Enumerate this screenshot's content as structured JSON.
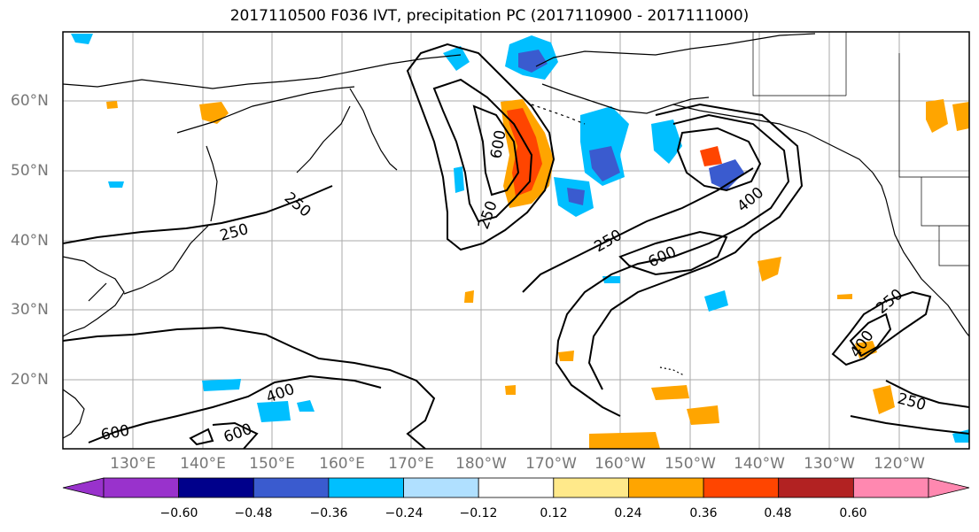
{
  "title": "2017110500 F036 IVT, precipitation PC (2017110900 - 2017111000)",
  "lat_labels": [
    "60°N",
    "50°N",
    "40°N",
    "30°N",
    "20°N"
  ],
  "lon_labels": [
    "130°E",
    "140°E",
    "150°E",
    "160°E",
    "170°E",
    "180°W",
    "170°W",
    "160°W",
    "150°W",
    "140°W",
    "130°W",
    "120°W"
  ],
  "contour_labels": [
    "250",
    "250",
    "250",
    "250",
    "250",
    "250",
    "400",
    "400",
    "400",
    "600",
    "600",
    "600",
    "600"
  ],
  "colorbar": {
    "ticks": [
      "−0.60",
      "−0.48",
      "−0.36",
      "−0.24",
      "−0.12",
      "0.12",
      "0.24",
      "0.36",
      "0.48",
      "0.60"
    ],
    "colors": [
      "#9932cc",
      "#00008b",
      "#3a5bcf",
      "#00bfff",
      "#b0e0ff",
      "#ffffff",
      "#ffe98a",
      "#ffa500",
      "#ff4500",
      "#b22222",
      "#ff88b0"
    ]
  }
}
